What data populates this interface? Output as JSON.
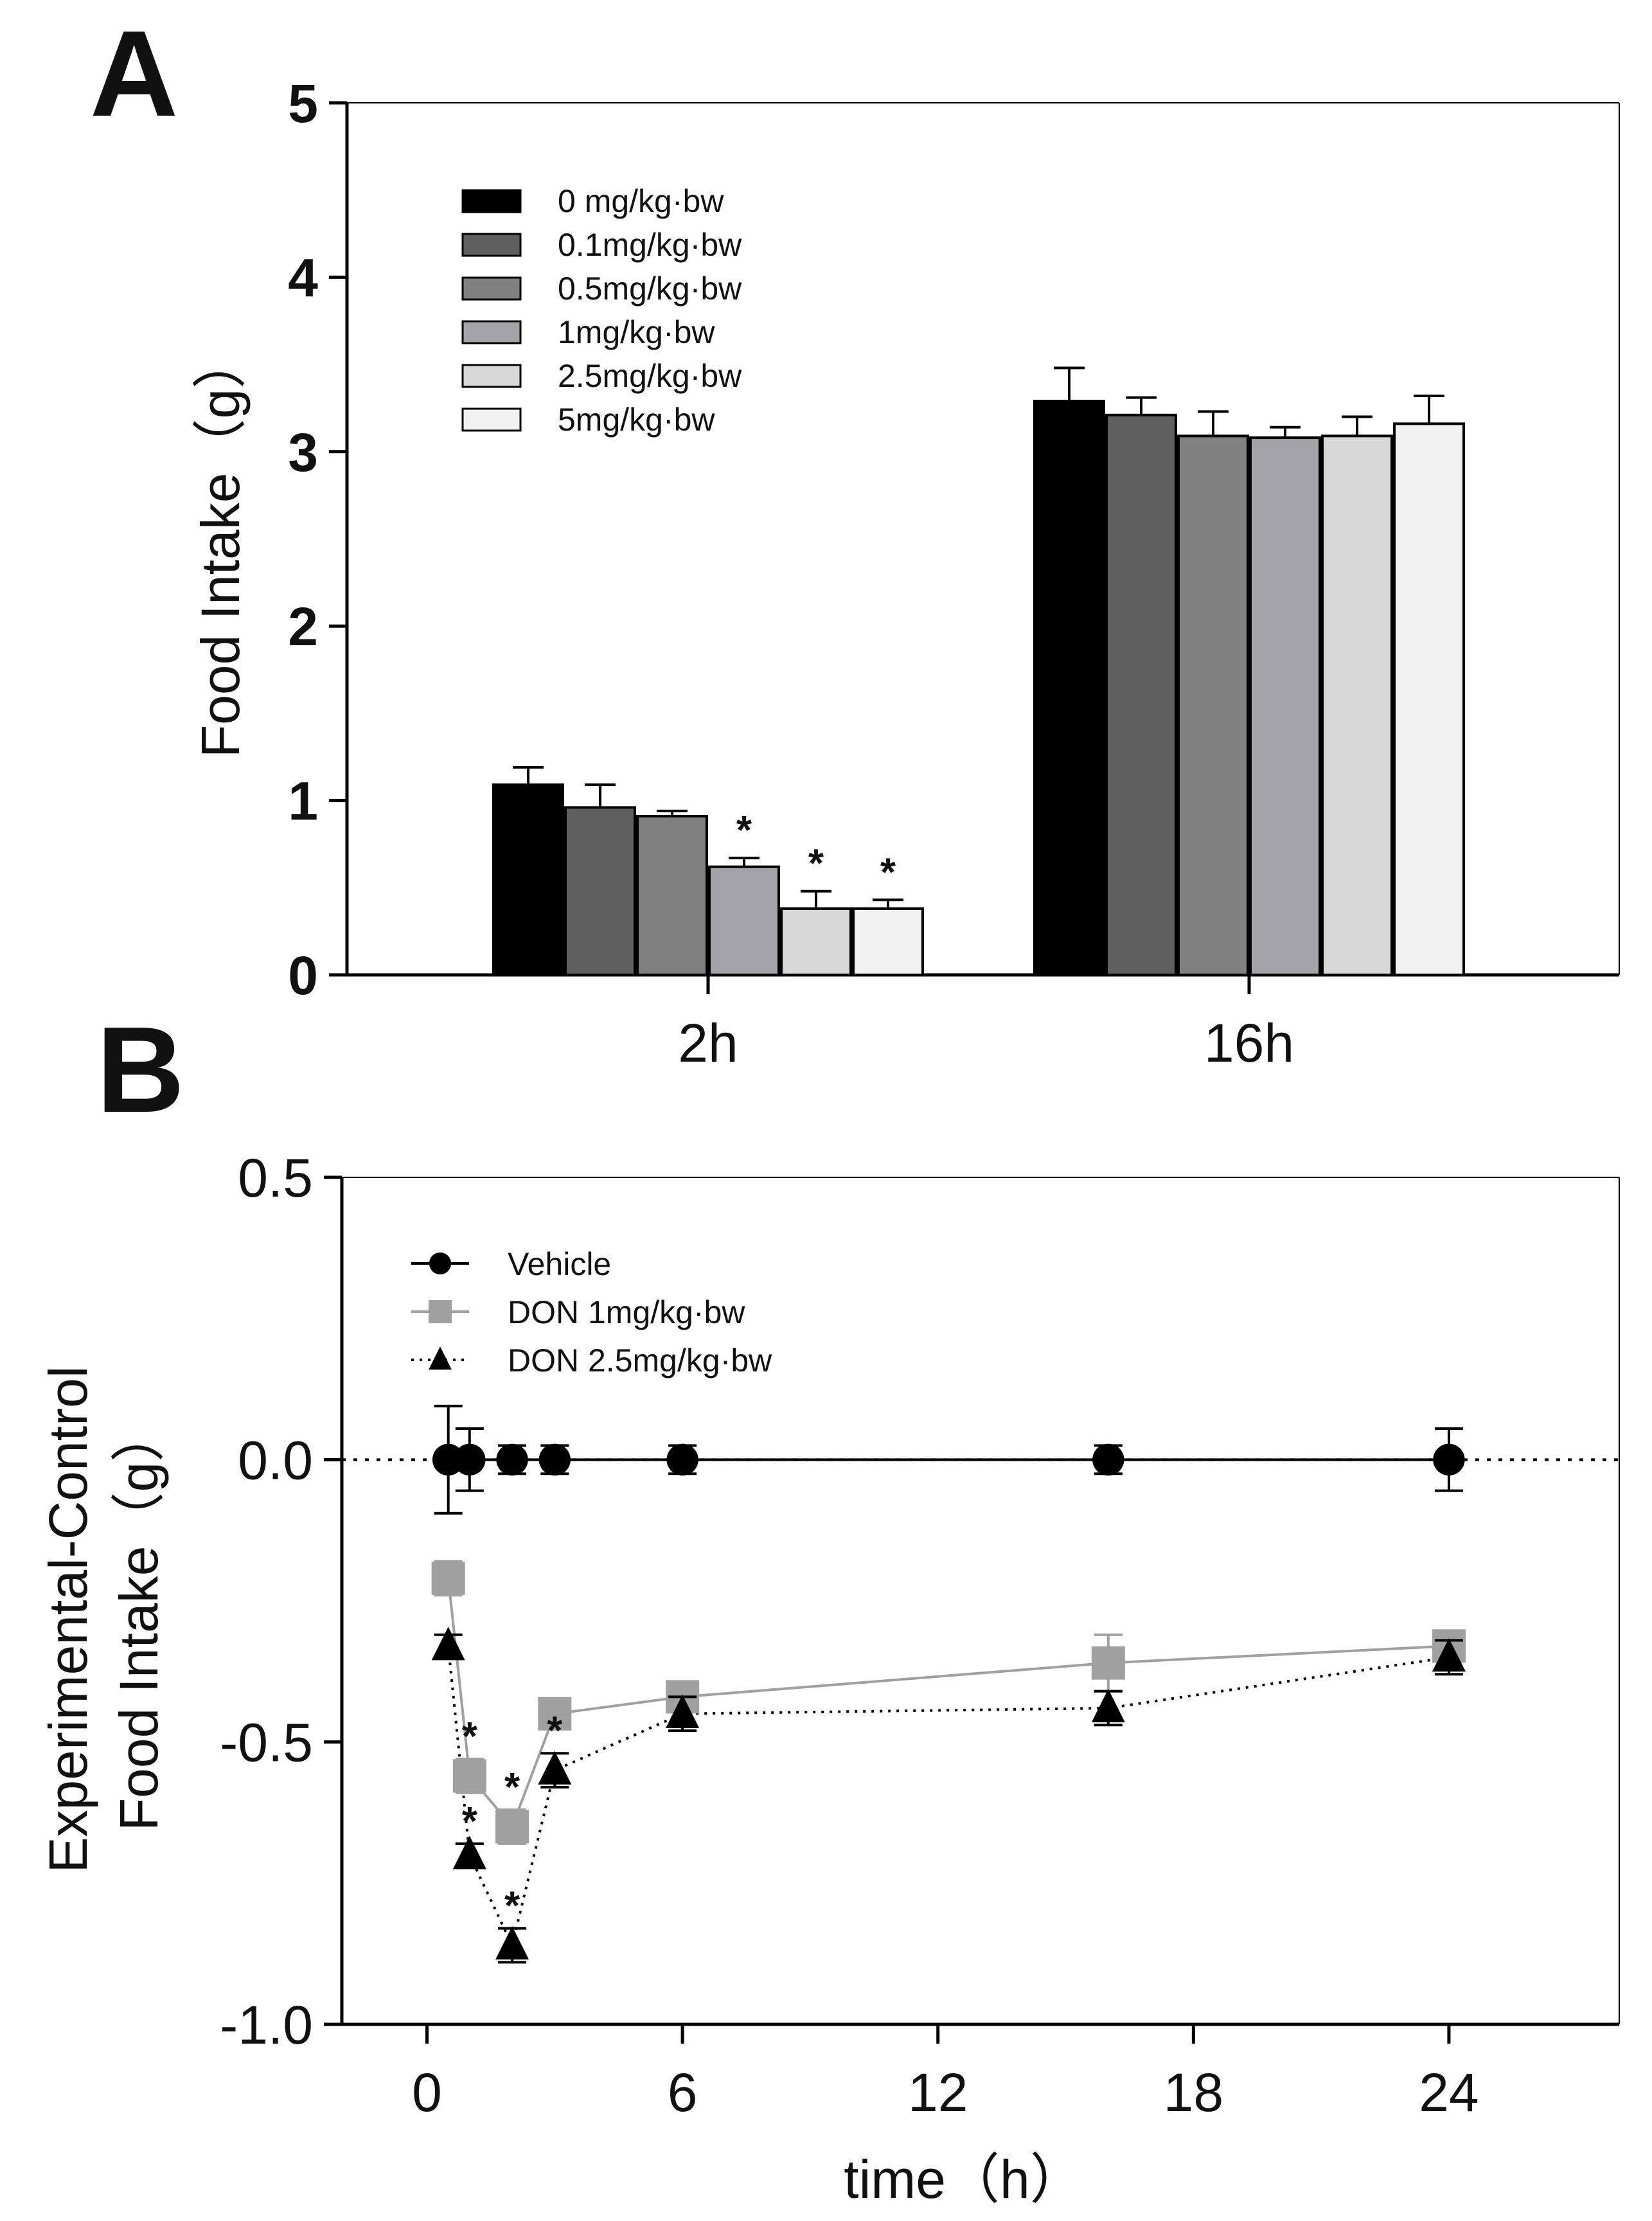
{
  "figure": {
    "panel_a_label": "A",
    "panel_b_label": "B"
  },
  "chart_data": [
    {
      "type": "bar",
      "panel": "A",
      "title": "",
      "xlabel": "",
      "ylabel": "Food Intake（g）",
      "ylim": [
        0,
        5
      ],
      "yticks": [
        0,
        1,
        2,
        3,
        4,
        5
      ],
      "categories": [
        "2h",
        "16h"
      ],
      "legend_position": "top-left",
      "series": [
        {
          "name": "0 mg/kg·bw",
          "color": "#000000",
          "values": [
            1.09,
            3.29
          ],
          "errors": [
            0.1,
            0.19
          ],
          "significant": [
            false,
            false
          ]
        },
        {
          "name": "0.1mg/kg·bw",
          "color": "#5f5f5f",
          "values": [
            0.96,
            3.21
          ],
          "errors": [
            0.13,
            0.1
          ],
          "significant": [
            false,
            false
          ]
        },
        {
          "name": "0.5mg/kg·bw",
          "color": "#808080",
          "values": [
            0.91,
            3.09
          ],
          "errors": [
            0.03,
            0.14
          ],
          "significant": [
            false,
            false
          ]
        },
        {
          "name": "1mg/kg·bw",
          "color": "#a3a3a8",
          "values": [
            0.62,
            3.08
          ],
          "errors": [
            0.05,
            0.06
          ],
          "significant": [
            true,
            false
          ]
        },
        {
          "name": "2.5mg/kg·bw",
          "color": "#d8d8d8",
          "values": [
            0.38,
            3.09
          ],
          "errors": [
            0.1,
            0.11
          ],
          "significant": [
            true,
            false
          ]
        },
        {
          "name": "5mg/kg·bw",
          "color": "#f1f1f1",
          "values": [
            0.38,
            3.16
          ],
          "errors": [
            0.05,
            0.16
          ],
          "significant": [
            true,
            false
          ]
        }
      ],
      "significance_marker": "*"
    },
    {
      "type": "line",
      "panel": "B",
      "title": "",
      "xlabel": "time（h）",
      "ylabel_line1": "Experimental-Control",
      "ylabel_line2": "Food Intake（g）",
      "xlim": [
        -2,
        28
      ],
      "ylim": [
        -1.0,
        0.5
      ],
      "xticks": [
        0,
        6,
        12,
        18,
        24
      ],
      "yticks": [
        -1.0,
        -0.5,
        0.0,
        0.5
      ],
      "ytick_labels": [
        "-1.0",
        "-0.5",
        "0.0",
        "0.5"
      ],
      "reference_line_y": 0,
      "legend_position": "top-left",
      "series": [
        {
          "name": "Vehicle",
          "marker": "circle",
          "line": "solid",
          "color": "#000000",
          "x": [
            0.5,
            1,
            2,
            3,
            6,
            16,
            24
          ],
          "y": [
            0.0,
            0.0,
            0.0,
            0.0,
            0.0,
            0.0,
            0.0
          ],
          "errors": [
            0.095,
            0.055,
            0.025,
            0.025,
            0.025,
            0.025,
            0.055
          ],
          "significant": [
            false,
            false,
            false,
            false,
            false,
            false,
            false
          ]
        },
        {
          "name": "DON 1mg/kg·bw",
          "marker": "square",
          "line": "solid",
          "color": "#a0a0a0",
          "x": [
            0.5,
            1,
            2,
            3,
            6,
            16,
            24
          ],
          "y": [
            -0.21,
            -0.56,
            -0.65,
            -0.45,
            -0.42,
            -0.36,
            -0.33
          ],
          "errors": [
            0.03,
            0.03,
            0.03,
            0.02,
            0.02,
            0.05,
            0.02
          ],
          "significant": [
            false,
            true,
            true,
            false,
            false,
            false,
            false
          ]
        },
        {
          "name": "DON 2.5mg/kg·bw",
          "marker": "triangle",
          "line": "dotted",
          "color": "#000000",
          "x": [
            0.5,
            1,
            2,
            3,
            6,
            16,
            24
          ],
          "y": [
            -0.33,
            -0.7,
            -0.86,
            -0.55,
            -0.45,
            -0.44,
            -0.35
          ],
          "errors": [
            0.02,
            0.02,
            0.03,
            0.03,
            0.03,
            0.03,
            0.03
          ],
          "significant": [
            false,
            true,
            true,
            true,
            false,
            false,
            false
          ]
        }
      ],
      "significance_marker": "*"
    }
  ]
}
